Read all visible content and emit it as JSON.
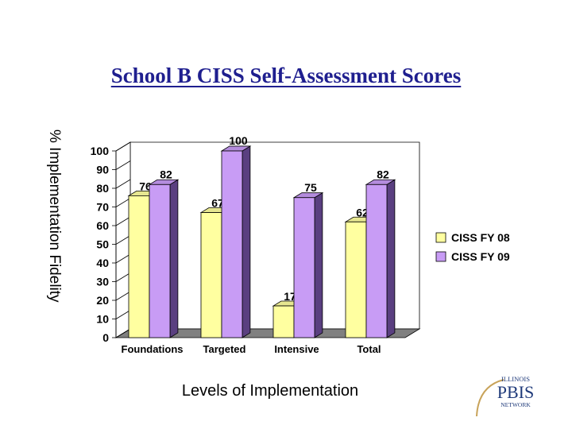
{
  "title": "School B CISS Self-Assessment Scores",
  "chart_data": {
    "type": "bar",
    "categories": [
      "Foundations",
      "Targeted",
      "Intensive",
      "Total"
    ],
    "series": [
      {
        "name": "CISS FY 08",
        "values": [
          76,
          67,
          17,
          62
        ],
        "color": "#ffffa0"
      },
      {
        "name": "CISS FY 09",
        "values": [
          82,
          100,
          75,
          82
        ],
        "color": "#c89cf5"
      }
    ],
    "xlabel": "Levels of Implementation",
    "ylabel": "% Implementation Fidelity",
    "ylim": [
      0,
      100
    ],
    "yticks": [
      0,
      10,
      20,
      30,
      40,
      50,
      60,
      70,
      80,
      90,
      100
    ],
    "legend": "right",
    "grid": false,
    "three_d": true
  },
  "logo": {
    "line1": "ILLINOIS",
    "line2": "PBIS",
    "line3": "NETWORK"
  }
}
